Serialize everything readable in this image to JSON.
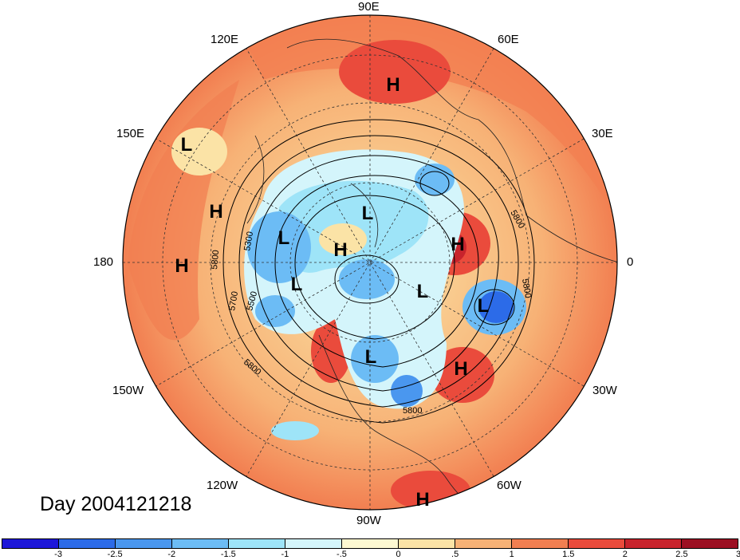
{
  "map": {
    "longitude_labels": [
      "90E",
      "60E",
      "30E",
      "0",
      "30W",
      "60W",
      "90W",
      "120W",
      "150W",
      "180",
      "150E",
      "120E"
    ],
    "pressure_systems": [
      {
        "type": "H",
        "lon": "75E"
      },
      {
        "type": "L",
        "lon": "150E"
      },
      {
        "type": "H",
        "lon": "165E"
      },
      {
        "type": "H",
        "lon": "180"
      },
      {
        "type": "L",
        "lon": "110E"
      },
      {
        "type": "H",
        "lon": "90E"
      },
      {
        "type": "H",
        "lon": "15E"
      },
      {
        "type": "L",
        "lon": "140W"
      },
      {
        "type": "L",
        "lon": "45W"
      },
      {
        "type": "L",
        "lon": "15W"
      },
      {
        "type": "H",
        "lon": "30W"
      },
      {
        "type": "L",
        "lon": "95W"
      },
      {
        "type": "L",
        "lon": "110E"
      },
      {
        "type": "H",
        "lon": "75W"
      }
    ],
    "contour_labels": [
      "5800",
      "5300",
      "5700",
      "5500",
      "5800",
      "5800",
      "5800",
      "5800"
    ]
  },
  "title": "Day 2004121218",
  "colorbar": {
    "colors": [
      "#1d17d8",
      "#2c6be8",
      "#4a97ef",
      "#6cbcf5",
      "#9ee4f8",
      "#d4f5fb",
      "#fdf9d2",
      "#fbe3a6",
      "#f7b276",
      "#f27f51",
      "#ea4b3c",
      "#c8232c",
      "#9c0f22"
    ],
    "labels": [
      "-3",
      "-2.5",
      "-2",
      "-1.5",
      "-1",
      "-.5",
      "0",
      ".5",
      "1",
      "1.5",
      "2",
      "2.5",
      "3"
    ]
  }
}
